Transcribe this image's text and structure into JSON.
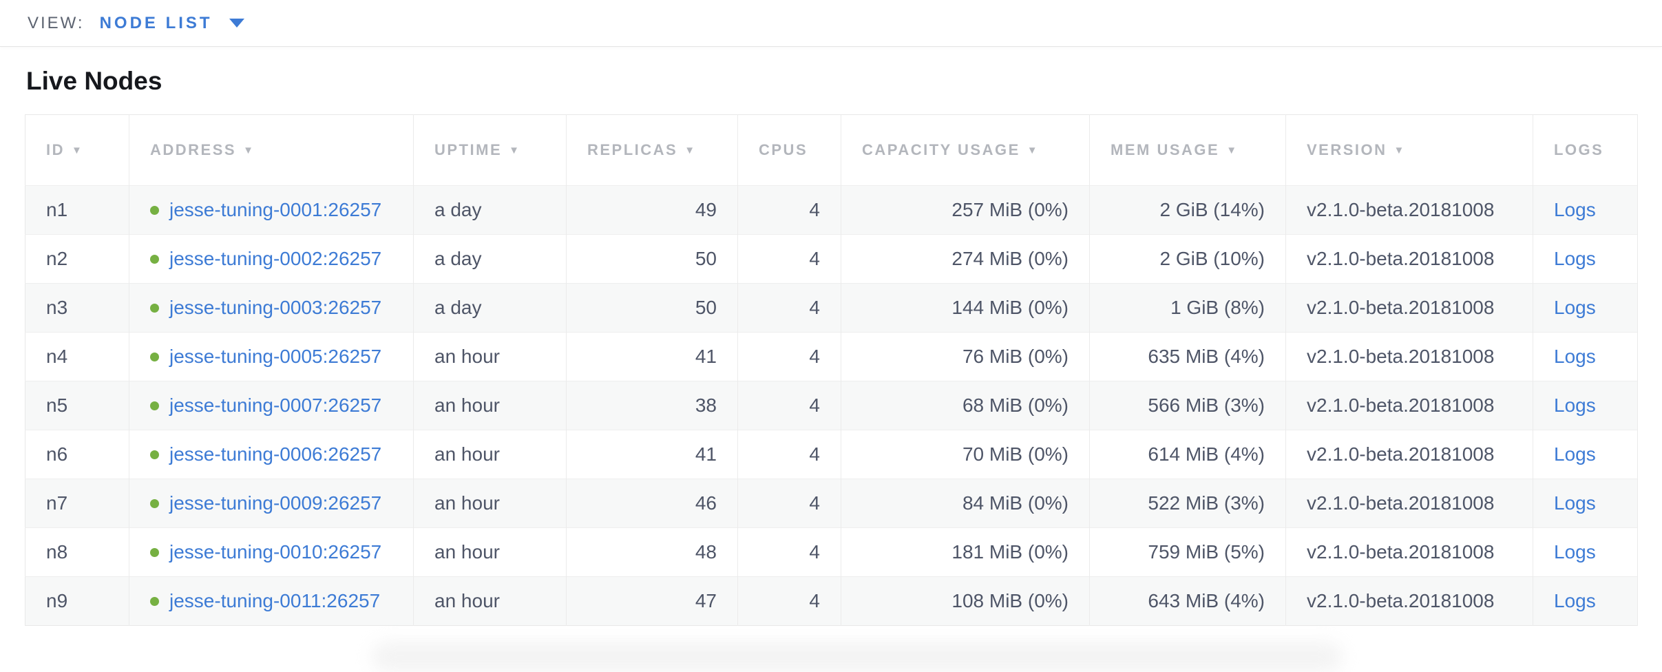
{
  "view_bar": {
    "label": "VIEW:",
    "selected": "NODE LIST"
  },
  "page": {
    "title": "Live Nodes"
  },
  "icons": {
    "sort_desc": "▼"
  },
  "colors": {
    "accent_blue": "#3d7bd5",
    "live_green": "#76b042",
    "header_gray": "#b3b6bc",
    "text_slate": "#4e5567",
    "row_stripe": "#f7f8f8"
  },
  "table": {
    "columns": [
      {
        "key": "id",
        "label": "ID",
        "sortable": true,
        "align": "left"
      },
      {
        "key": "address",
        "label": "ADDRESS",
        "sortable": true,
        "align": "left"
      },
      {
        "key": "uptime",
        "label": "UPTIME",
        "sortable": true,
        "align": "left"
      },
      {
        "key": "replicas",
        "label": "REPLICAS",
        "sortable": true,
        "align": "right"
      },
      {
        "key": "cpus",
        "label": "CPUS",
        "sortable": false,
        "align": "right"
      },
      {
        "key": "capacity",
        "label": "CAPACITY USAGE",
        "sortable": true,
        "align": "right"
      },
      {
        "key": "mem",
        "label": "MEM USAGE",
        "sortable": true,
        "align": "right"
      },
      {
        "key": "version",
        "label": "VERSION",
        "sortable": true,
        "align": "left"
      },
      {
        "key": "logs",
        "label": "LOGS",
        "sortable": false,
        "align": "left"
      }
    ],
    "rows": [
      {
        "id": "n1",
        "address": "jesse-tuning-0001:26257",
        "status": "live",
        "uptime": "a day",
        "replicas": "49",
        "cpus": "4",
        "capacity": "257 MiB (0%)",
        "mem": "2 GiB (14%)",
        "version": "v2.1.0-beta.20181008",
        "logs": "Logs"
      },
      {
        "id": "n2",
        "address": "jesse-tuning-0002:26257",
        "status": "live",
        "uptime": "a day",
        "replicas": "50",
        "cpus": "4",
        "capacity": "274 MiB (0%)",
        "mem": "2 GiB (10%)",
        "version": "v2.1.0-beta.20181008",
        "logs": "Logs"
      },
      {
        "id": "n3",
        "address": "jesse-tuning-0003:26257",
        "status": "live",
        "uptime": "a day",
        "replicas": "50",
        "cpus": "4",
        "capacity": "144 MiB (0%)",
        "mem": "1 GiB (8%)",
        "version": "v2.1.0-beta.20181008",
        "logs": "Logs"
      },
      {
        "id": "n4",
        "address": "jesse-tuning-0005:26257",
        "status": "live",
        "uptime": "an hour",
        "replicas": "41",
        "cpus": "4",
        "capacity": "76 MiB (0%)",
        "mem": "635 MiB (4%)",
        "version": "v2.1.0-beta.20181008",
        "logs": "Logs"
      },
      {
        "id": "n5",
        "address": "jesse-tuning-0007:26257",
        "status": "live",
        "uptime": "an hour",
        "replicas": "38",
        "cpus": "4",
        "capacity": "68 MiB (0%)",
        "mem": "566 MiB (3%)",
        "version": "v2.1.0-beta.20181008",
        "logs": "Logs"
      },
      {
        "id": "n6",
        "address": "jesse-tuning-0006:26257",
        "status": "live",
        "uptime": "an hour",
        "replicas": "41",
        "cpus": "4",
        "capacity": "70 MiB (0%)",
        "mem": "614 MiB (4%)",
        "version": "v2.1.0-beta.20181008",
        "logs": "Logs"
      },
      {
        "id": "n7",
        "address": "jesse-tuning-0009:26257",
        "status": "live",
        "uptime": "an hour",
        "replicas": "46",
        "cpus": "4",
        "capacity": "84 MiB (0%)",
        "mem": "522 MiB (3%)",
        "version": "v2.1.0-beta.20181008",
        "logs": "Logs"
      },
      {
        "id": "n8",
        "address": "jesse-tuning-0010:26257",
        "status": "live",
        "uptime": "an hour",
        "replicas": "48",
        "cpus": "4",
        "capacity": "181 MiB (0%)",
        "mem": "759 MiB (5%)",
        "version": "v2.1.0-beta.20181008",
        "logs": "Logs"
      },
      {
        "id": "n9",
        "address": "jesse-tuning-0011:26257",
        "status": "live",
        "uptime": "an hour",
        "replicas": "47",
        "cpus": "4",
        "capacity": "108 MiB (0%)",
        "mem": "643 MiB (4%)",
        "version": "v2.1.0-beta.20181008",
        "logs": "Logs"
      }
    ]
  }
}
